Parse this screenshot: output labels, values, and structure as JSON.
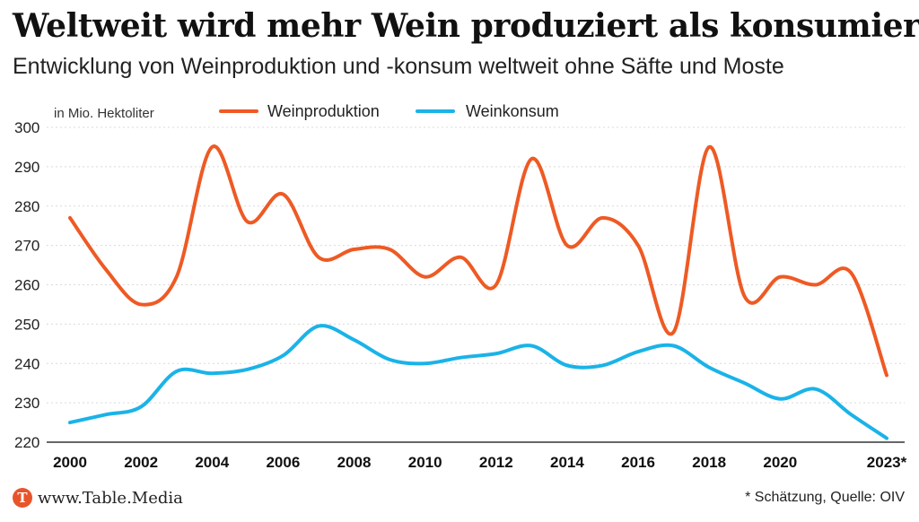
{
  "colors": {
    "production": "#ee5a24",
    "consumption": "#1ab3e8",
    "grid": "#d9d9d9",
    "brand": "#e8542a"
  },
  "chart_data": {
    "type": "line",
    "title": "Weltweit wird mehr Wein produziert als konsumiert",
    "subtitle": "Entwicklung von Weinproduktion und -konsum weltweit ohne Säfte und Moste",
    "ylabel": "in Mio. Hektoliter",
    "xlabel": "",
    "ylim": [
      220,
      300
    ],
    "yticks": [
      220,
      230,
      240,
      250,
      260,
      270,
      280,
      290,
      300
    ],
    "xlim": [
      2000,
      2023
    ],
    "xtick_labels": [
      "2000",
      "2002",
      "2004",
      "2006",
      "2008",
      "2010",
      "2012",
      "2014",
      "2016",
      "2018",
      "2020",
      "2023*"
    ],
    "x": [
      2000,
      2001,
      2002,
      2003,
      2004,
      2005,
      2006,
      2007,
      2008,
      2009,
      2010,
      2011,
      2012,
      2013,
      2014,
      2015,
      2016,
      2017,
      2018,
      2019,
      2020,
      2021,
      2022,
      2023
    ],
    "series": [
      {
        "name": "Weinproduktion",
        "color": "#ee5a24",
        "values": [
          277,
          264,
          255,
          262,
          295,
          276,
          283,
          267,
          269,
          269,
          262,
          267,
          260,
          292,
          270,
          277,
          270,
          248,
          295,
          257,
          262,
          260,
          263,
          237
        ]
      },
      {
        "name": "Weinkonsum",
        "color": "#1ab3e8",
        "values": [
          225,
          227,
          229,
          238,
          237.5,
          238.5,
          242,
          249.5,
          246,
          241,
          240,
          241.5,
          242.5,
          244.5,
          239.5,
          239.5,
          243,
          244.5,
          239,
          235,
          231,
          233.5,
          227,
          221
        ]
      }
    ],
    "legend": "top"
  },
  "footer": {
    "brand_logo": "T",
    "brand": "www.Table.Media",
    "source": "* Schätzung, Quelle: OIV"
  }
}
